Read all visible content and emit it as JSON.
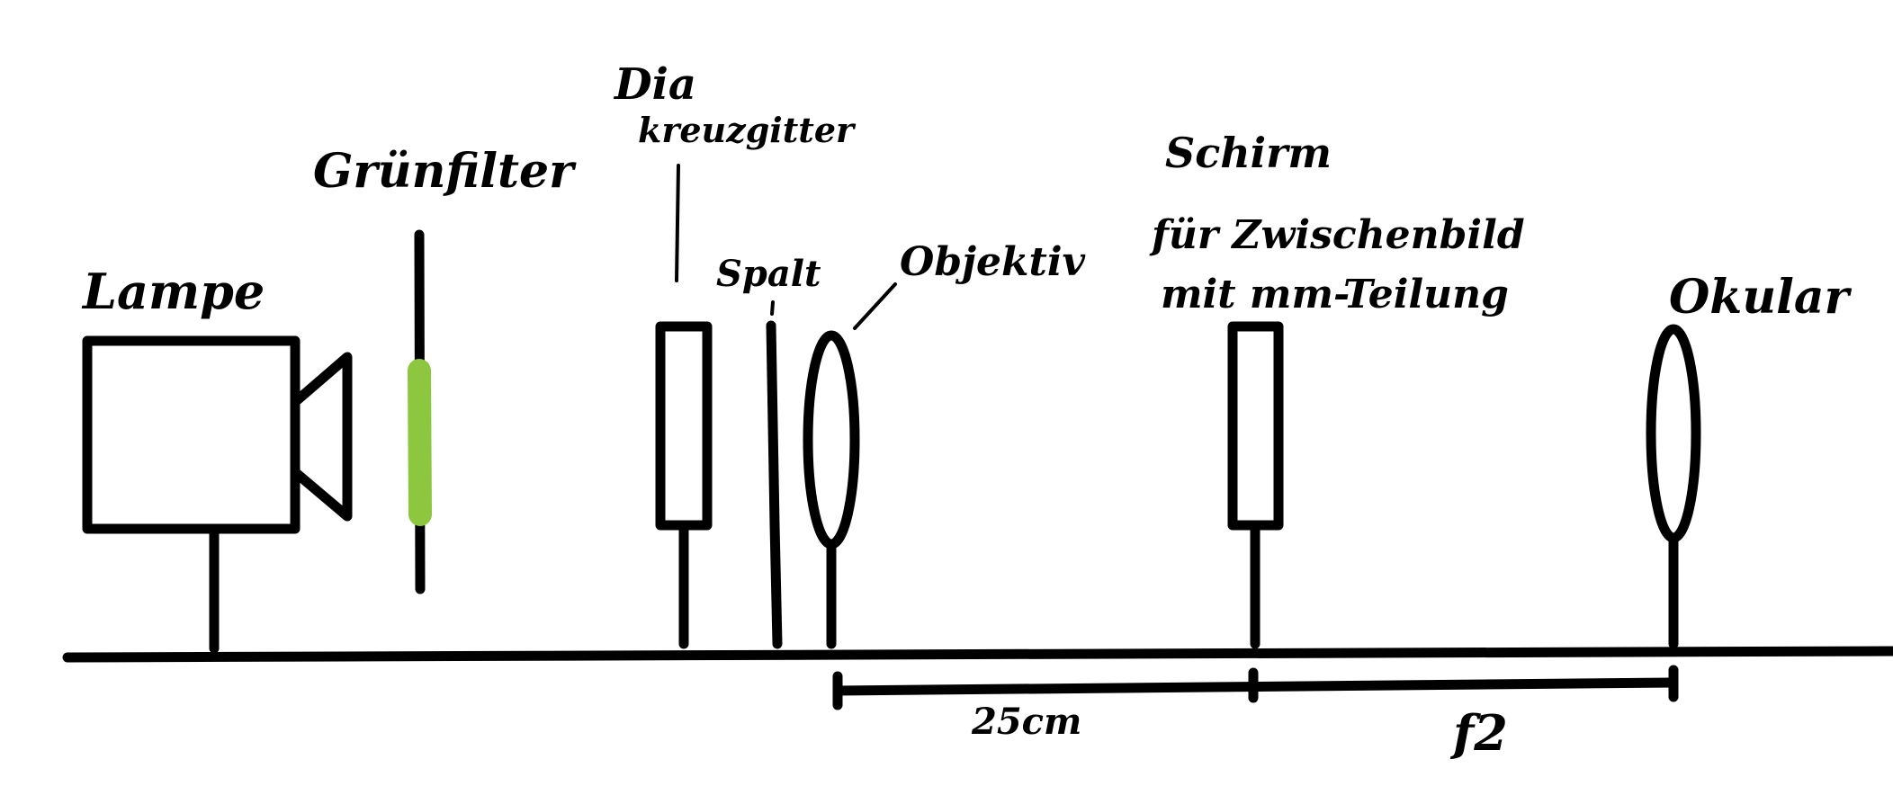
{
  "labels": {
    "lamp": "Lampe",
    "green_filter": "Grünfilter",
    "slide_line1": "Dia",
    "slide_line2": "kreuzgitter",
    "slit": "Spalt",
    "objective": "Objektiv",
    "screen_line1": "Schirm",
    "screen_line2": "für Zwischenbild",
    "screen_line3": "mit mm-Teilung",
    "eyepiece": "Okular",
    "dim_objective_screen": "25cm",
    "dim_screen_eyepiece": "f2"
  },
  "colors": {
    "ink": "#000000",
    "filter_green": "#8dc63f"
  }
}
